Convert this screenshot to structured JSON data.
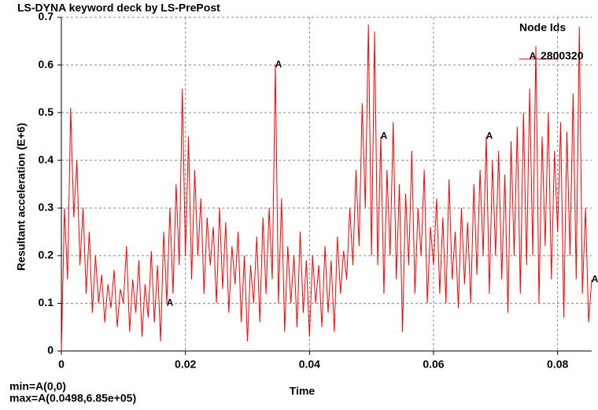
{
  "chart_data": {
    "type": "line",
    "title": "LS-DYNA keyword deck by LS-PrePost",
    "xlabel": "Time",
    "ylabel": "Resultant acceleration (E+6)",
    "legend_title": "Node Ids",
    "annotations": [
      "min=A(0,0)",
      "max=A(0.0498,6.85e+05)"
    ],
    "xlim": [
      0,
      0.0855
    ],
    "ylim": [
      0,
      0.7
    ],
    "xticks": [
      0,
      0.02,
      0.04,
      0.06,
      0.08
    ],
    "yticks": [
      0,
      0.1,
      0.2,
      0.3,
      0.4,
      0.5,
      0.6,
      0.7
    ],
    "grid": true,
    "marker_x": [
      0.017,
      0.0345,
      0.0515,
      0.0685,
      0.0855
    ],
    "series": [
      {
        "name": "2800320",
        "label": "A",
        "color": "#ff0000",
        "x": [
          0,
          0.0005,
          0.001,
          0.0015,
          0.002,
          0.0025,
          0.003,
          0.0035,
          0.004,
          0.0045,
          0.005,
          0.0055,
          0.006,
          0.0065,
          0.007,
          0.0075,
          0.008,
          0.0085,
          0.009,
          0.0095,
          0.01,
          0.0105,
          0.011,
          0.0115,
          0.012,
          0.0125,
          0.013,
          0.0135,
          0.014,
          0.0145,
          0.015,
          0.0155,
          0.016,
          0.0165,
          0.017,
          0.0175,
          0.018,
          0.0185,
          0.019,
          0.0195,
          0.02,
          0.0205,
          0.021,
          0.0215,
          0.022,
          0.0225,
          0.023,
          0.0235,
          0.024,
          0.0245,
          0.025,
          0.0255,
          0.026,
          0.0265,
          0.027,
          0.0275,
          0.028,
          0.0285,
          0.029,
          0.0295,
          0.03,
          0.0305,
          0.031,
          0.0315,
          0.032,
          0.0325,
          0.033,
          0.0335,
          0.034,
          0.0345,
          0.035,
          0.0355,
          0.036,
          0.0365,
          0.037,
          0.0375,
          0.038,
          0.0385,
          0.039,
          0.0395,
          0.04,
          0.0405,
          0.041,
          0.0415,
          0.042,
          0.0425,
          0.043,
          0.0435,
          0.044,
          0.0445,
          0.045,
          0.0455,
          0.046,
          0.0465,
          0.047,
          0.0475,
          0.048,
          0.0485,
          0.049,
          0.0495,
          0.05,
          0.0505,
          0.051,
          0.0515,
          0.052,
          0.0525,
          0.053,
          0.0535,
          0.054,
          0.0545,
          0.055,
          0.0555,
          0.056,
          0.0565,
          0.057,
          0.0575,
          0.058,
          0.0585,
          0.059,
          0.0595,
          0.06,
          0.0605,
          0.061,
          0.0615,
          0.062,
          0.0625,
          0.063,
          0.0635,
          0.064,
          0.0645,
          0.065,
          0.0655,
          0.066,
          0.0665,
          0.067,
          0.0675,
          0.068,
          0.0685,
          0.069,
          0.0695,
          0.07,
          0.0705,
          0.071,
          0.0715,
          0.072,
          0.0725,
          0.073,
          0.0735,
          0.074,
          0.0745,
          0.075,
          0.0755,
          0.076,
          0.0765,
          0.077,
          0.0775,
          0.078,
          0.0785,
          0.079,
          0.0795,
          0.08,
          0.0805,
          0.081,
          0.0815,
          0.082,
          0.0825,
          0.083,
          0.0835,
          0.084,
          0.0845,
          0.085,
          0.0855
        ],
        "values": [
          0,
          0.3,
          0.15,
          0.51,
          0.28,
          0.4,
          0.18,
          0.3,
          0.12,
          0.25,
          0.08,
          0.2,
          0.1,
          0.16,
          0.06,
          0.14,
          0.09,
          0.17,
          0.05,
          0.13,
          0.1,
          0.22,
          0.04,
          0.15,
          0.08,
          0.19,
          0.03,
          0.14,
          0.07,
          0.21,
          0.06,
          0.18,
          0.02,
          0.25,
          0.1,
          0.3,
          0.12,
          0.35,
          0.18,
          0.55,
          0.2,
          0.45,
          0.15,
          0.38,
          0.2,
          0.32,
          0.12,
          0.28,
          0.18,
          0.26,
          0.1,
          0.3,
          0.13,
          0.27,
          0.08,
          0.22,
          0.14,
          0.25,
          0.06,
          0.2,
          0.02,
          0.18,
          0.1,
          0.24,
          0.06,
          0.28,
          0.12,
          0.3,
          0.15,
          0.6,
          0.1,
          0.32,
          0.04,
          0.22,
          0.1,
          0.2,
          0.05,
          0.25,
          0.08,
          0.19,
          0.03,
          0.2,
          0.1,
          0.18,
          0.05,
          0.22,
          0.08,
          0.19,
          0.04,
          0.24,
          0.12,
          0.21,
          0.15,
          0.3,
          0.18,
          0.38,
          0.22,
          0.52,
          0.3,
          0.685,
          0.2,
          0.67,
          0.18,
          0.45,
          0.12,
          0.38,
          0.2,
          0.48,
          0.15,
          0.35,
          0.04,
          0.33,
          0.18,
          0.42,
          0.12,
          0.3,
          0.2,
          0.38,
          0.1,
          0.26,
          0.18,
          0.32,
          0.12,
          0.28,
          0.1,
          0.36,
          0.15,
          0.25,
          0.09,
          0.3,
          0.14,
          0.27,
          0.1,
          0.35,
          0.16,
          0.38,
          0.2,
          0.45,
          0.12,
          0.4,
          0.2,
          0.42,
          0.15,
          0.37,
          0.08,
          0.44,
          0.2,
          0.47,
          0.12,
          0.5,
          0.18,
          0.55,
          0.2,
          0.64,
          0.1,
          0.45,
          0.22,
          0.5,
          0.15,
          0.42,
          0.25,
          0.48,
          0.07,
          0.46,
          0.2,
          0.54,
          0.15,
          0.68,
          0.12,
          0.3,
          0.06,
          0.15
        ]
      }
    ]
  }
}
